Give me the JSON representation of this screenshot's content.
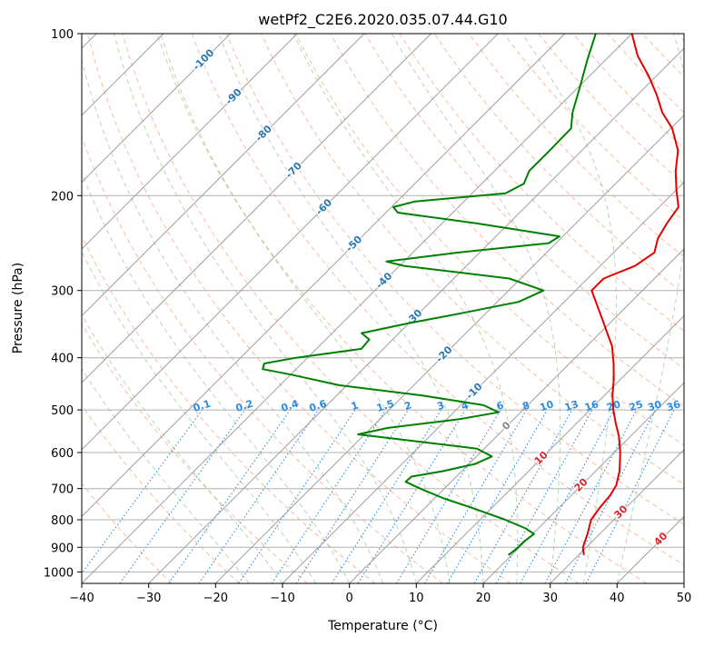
{
  "chart_data": {
    "type": "line",
    "title": "wetPf2_C2E6.2020.035.07.44.G10",
    "xlabel": "Temperature (°C)",
    "ylabel": "Pressure (hPa)",
    "xlim": [
      -40,
      50
    ],
    "ylim": [
      1050,
      100
    ],
    "y_scale": "log",
    "x_ticks": [
      -40,
      -30,
      -20,
      -10,
      0,
      10,
      20,
      30,
      40,
      50
    ],
    "x_tick_labels": [
      "−40",
      "−30",
      "−20",
      "−10",
      "0",
      "10",
      "20",
      "30",
      "40",
      "50"
    ],
    "y_ticks": [
      1000,
      900,
      800,
      700,
      600,
      500,
      400,
      300,
      200,
      100
    ],
    "y_tick_labels": [
      "1000",
      "900",
      "800",
      "700",
      "600",
      "500",
      "400",
      "300",
      "200",
      "100"
    ],
    "grid": true,
    "skew_slope_deg_per_log": 80.5,
    "series": [
      {
        "role": "temperature",
        "color": "#e60000",
        "points": [
          [
            930,
            30.8
          ],
          [
            900,
            29.5
          ],
          [
            850,
            28.2
          ],
          [
            800,
            26.6
          ],
          [
            760,
            26.1
          ],
          [
            720,
            25.8
          ],
          [
            690,
            25.2
          ],
          [
            650,
            23.6
          ],
          [
            600,
            20.9
          ],
          [
            560,
            18.3
          ],
          [
            530,
            15.9
          ],
          [
            500,
            13.5
          ],
          [
            470,
            11.2
          ],
          [
            440,
            9.1
          ],
          [
            410,
            6.6
          ],
          [
            380,
            3.7
          ],
          [
            360,
            1.1
          ],
          [
            340,
            -1.6
          ],
          [
            320,
            -4.5
          ],
          [
            300,
            -7.6
          ],
          [
            285,
            -7.6
          ],
          [
            270,
            -4.8
          ],
          [
            255,
            -3.9
          ],
          [
            240,
            -5.5
          ],
          [
            225,
            -6.4
          ],
          [
            210,
            -7.1
          ],
          [
            195,
            -10.0
          ],
          [
            180,
            -12.9
          ],
          [
            165,
            -15.6
          ],
          [
            150,
            -19.8
          ],
          [
            140,
            -23.7
          ],
          [
            130,
            -27.1
          ],
          [
            120,
            -31.1
          ],
          [
            110,
            -35.8
          ],
          [
            100,
            -40.0
          ]
        ]
      },
      {
        "role": "dewpoint",
        "color": "#008000",
        "points": [
          [
            930,
            19.5
          ],
          [
            905,
            19.8
          ],
          [
            880,
            19.8
          ],
          [
            850,
            20.2
          ],
          [
            830,
            18.1
          ],
          [
            800,
            13.8
          ],
          [
            760,
            7.0
          ],
          [
            730,
            1.4
          ],
          [
            700,
            -3.6
          ],
          [
            680,
            -6.8
          ],
          [
            665,
            -6.7
          ],
          [
            650,
            -2.9
          ],
          [
            630,
            0.9
          ],
          [
            610,
            2.3
          ],
          [
            590,
            -1.1
          ],
          [
            570,
            -12.4
          ],
          [
            555,
            -21.0
          ],
          [
            540,
            -17.5
          ],
          [
            520,
            -8.1
          ],
          [
            505,
            -3.3
          ],
          [
            490,
            -6.6
          ],
          [
            470,
            -17.2
          ],
          [
            450,
            -31.1
          ],
          [
            430,
            -39.9
          ],
          [
            420,
            -45.0
          ],
          [
            410,
            -45.6
          ],
          [
            400,
            -41.7
          ],
          [
            385,
            -33.3
          ],
          [
            370,
            -33.5
          ],
          [
            360,
            -35.6
          ],
          [
            345,
            -30.0
          ],
          [
            330,
            -23.4
          ],
          [
            315,
            -16.8
          ],
          [
            300,
            -14.8
          ],
          [
            285,
            -21.7
          ],
          [
            270,
            -39.3
          ],
          [
            265,
            -42.6
          ],
          [
            255,
            -33.2
          ],
          [
            245,
            -21.1
          ],
          [
            238,
            -20.5
          ],
          [
            225,
            -35.0
          ],
          [
            215,
            -48.2
          ],
          [
            210,
            -49.7
          ],
          [
            205,
            -47.3
          ],
          [
            198,
            -35.0
          ],
          [
            190,
            -33.7
          ],
          [
            180,
            -34.8
          ],
          [
            165,
            -34.8
          ],
          [
            150,
            -34.9
          ],
          [
            140,
            -37.1
          ],
          [
            125,
            -39.9
          ],
          [
            112,
            -42.7
          ],
          [
            100,
            -45.4
          ]
        ]
      }
    ],
    "background_lines": {
      "isotherm_step": 10,
      "dry_adiabats_theta": [
        -30,
        -20,
        -10,
        0,
        10,
        20,
        30,
        40,
        50,
        60,
        70,
        80,
        90,
        100,
        110,
        120,
        130,
        140,
        150,
        160,
        170,
        180,
        190,
        200,
        210,
        220,
        230,
        240,
        250,
        260
      ],
      "moist_adiabats_start": [
        -15,
        -10,
        -5,
        0,
        5,
        10,
        15,
        20,
        25,
        30,
        35,
        40
      ],
      "mixing_ratios": [
        0.1,
        0.2,
        0.4,
        0.6,
        1,
        1.5,
        2,
        3,
        4,
        6,
        8,
        10,
        13,
        16,
        20,
        25,
        30,
        36
      ],
      "mixing_ratio_labels": [
        "0.1",
        "0.2",
        "0.4",
        "0.6",
        "1",
        "1.5",
        "2",
        "3",
        "4",
        "6",
        "8",
        "10",
        "13",
        "16",
        "20",
        "25",
        "30",
        "36"
      ]
    },
    "annotations": {
      "isotherm_labels_blue": [
        {
          "t": -100,
          "text": "-100"
        },
        {
          "t": -90,
          "text": "-90"
        },
        {
          "t": -80,
          "text": "-80"
        },
        {
          "t": -70,
          "text": "-70"
        },
        {
          "t": -60,
          "text": "-60"
        },
        {
          "t": -50,
          "text": "-50"
        },
        {
          "t": -40,
          "text": "-40"
        },
        {
          "t": -30,
          "text": "-30"
        },
        {
          "t": -20,
          "text": "-20"
        },
        {
          "t": -10,
          "text": "-10"
        }
      ],
      "isotherm_label_grey": {
        "t": 0,
        "text": "0"
      },
      "isotherm_labels_red": [
        {
          "t": 10,
          "text": "10"
        },
        {
          "t": 20,
          "text": "20"
        },
        {
          "t": 30,
          "text": "30"
        },
        {
          "t": 40,
          "text": "40"
        }
      ]
    }
  }
}
